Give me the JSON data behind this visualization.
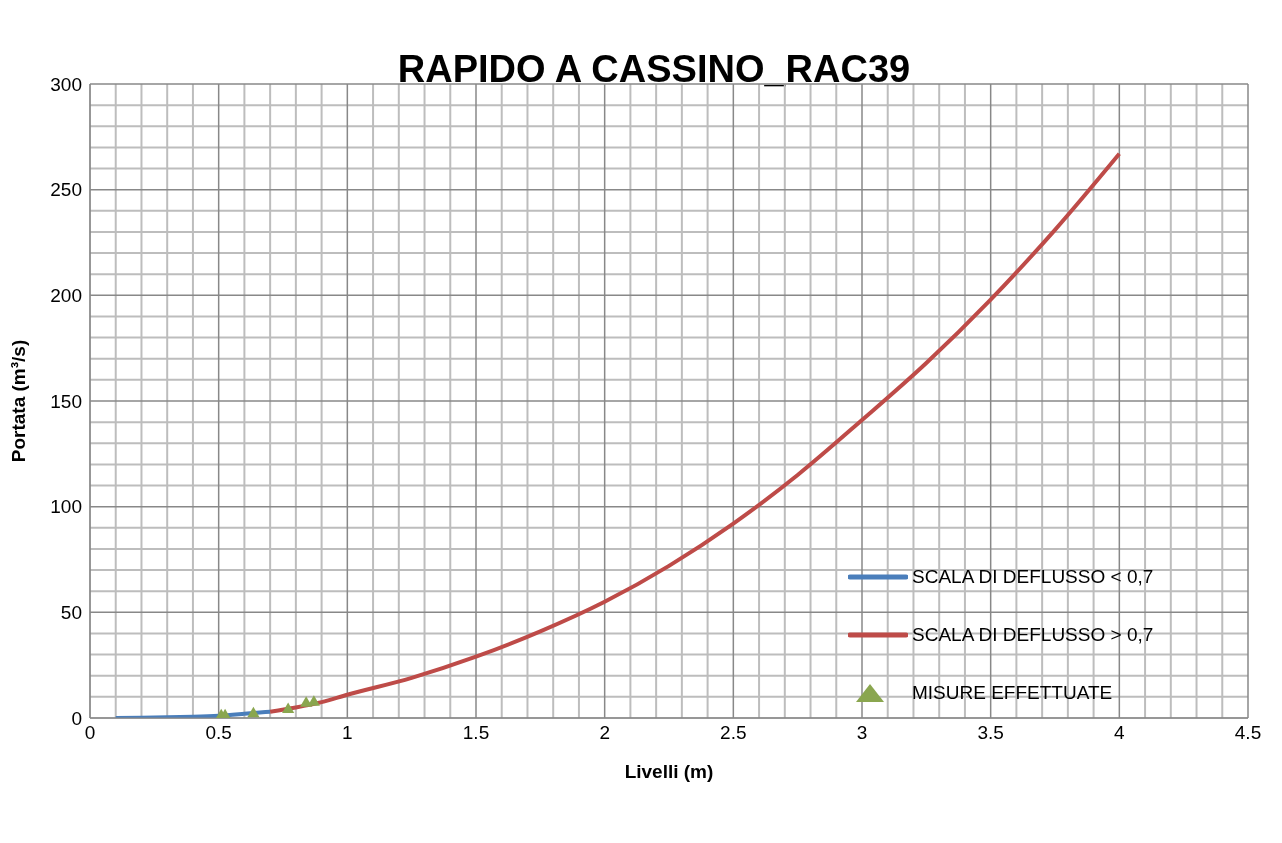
{
  "chart_data": {
    "type": "line",
    "title": "RAPIDO A CASSINO_RAC39",
    "xlabel": "Livelli (m)",
    "ylabel": "Portata (m³/s)",
    "xlim": [
      0,
      4.5
    ],
    "xticks": [
      0,
      0.5,
      1,
      1.5,
      2,
      2.5,
      3,
      3.5,
      4,
      4.5
    ],
    "ylim": [
      0,
      300
    ],
    "yticks": [
      0,
      50,
      100,
      150,
      200,
      250,
      300
    ],
    "grid": true,
    "legend": "right",
    "line_style": "solid",
    "marker": "none",
    "series": [
      {
        "name": "SCALA DI DEFLUSSO < 0,7",
        "color": "#4a7ebb",
        "x": [
          0.1,
          0.2,
          0.3,
          0.4,
          0.5,
          0.6,
          0.7
        ],
        "values": [
          0,
          0.1,
          0.3,
          0.6,
          1.1,
          2,
          3
        ]
      },
      {
        "name": "SCALA DI DEFLUSSO > 0,7",
        "color": "#be4b48",
        "x": [
          0.7,
          0.8,
          0.9,
          1,
          1.25,
          1.5,
          1.75,
          2,
          2.25,
          2.5,
          2.75,
          3,
          3.25,
          3.5,
          3.75,
          4
        ],
        "values": [
          3,
          5,
          7.5,
          11,
          19,
          29,
          41,
          55,
          72,
          92,
          115,
          141,
          168,
          198,
          231,
          267
        ]
      },
      {
        "name": "MISURE EFFETTUATE",
        "color": "#8aa64f",
        "type": "scatter",
        "marker": "triangle",
        "x": [
          0.51,
          0.525,
          0.635,
          0.77,
          0.84,
          0.87
        ],
        "values": [
          1,
          1,
          2,
          4,
          7,
          7.5
        ]
      }
    ]
  }
}
